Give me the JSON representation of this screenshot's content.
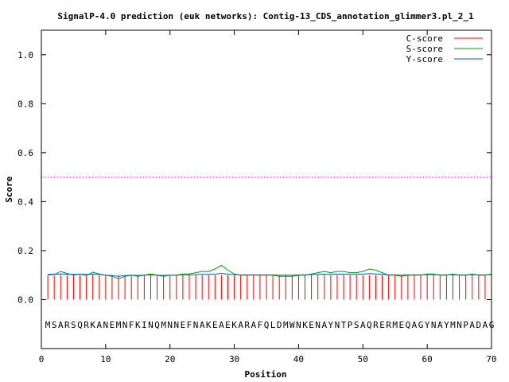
{
  "chart_data": {
    "type": "line",
    "title": "SignalP-4.0 prediction (euk networks): Contig-13_CDS_annotation_glimmer3.pl_2_1",
    "xlabel": "Position",
    "ylabel": "Score",
    "xlim": [
      0,
      70
    ],
    "ylim": [
      -0.2,
      1.1
    ],
    "xticks": [
      0,
      10,
      20,
      30,
      40,
      50,
      60,
      70
    ],
    "xtick_labels": [
      "0",
      "10",
      "20",
      "30",
      "40",
      "50",
      "60",
      "70"
    ],
    "yticks": [
      0.0,
      0.2,
      0.4,
      0.6,
      0.8,
      1.0
    ],
    "ytick_labels": [
      "0.0",
      "0.2",
      "0.4",
      "0.6",
      "0.8",
      "1.0"
    ],
    "grid": false,
    "legend_position": "top-right",
    "threshold": {
      "value": 0.5,
      "color": "#ff00ff",
      "style": "dotted"
    },
    "sequence": "MSARSQRKANEMNFKINQMNNEFNAKEAEKARAFQLDMWNKENAYNTPSAQRERMEQAGYNAYMNPADAG",
    "x": [
      1,
      2,
      3,
      4,
      5,
      6,
      7,
      8,
      9,
      10,
      11,
      12,
      13,
      14,
      15,
      16,
      17,
      18,
      19,
      20,
      21,
      22,
      23,
      24,
      25,
      26,
      27,
      28,
      29,
      30,
      31,
      32,
      33,
      34,
      35,
      36,
      37,
      38,
      39,
      40,
      41,
      42,
      43,
      44,
      45,
      46,
      47,
      48,
      49,
      50,
      51,
      52,
      53,
      54,
      55,
      56,
      57,
      58,
      59,
      60,
      61,
      62,
      63,
      64,
      65,
      66,
      67,
      68,
      69,
      70
    ],
    "series": [
      {
        "name": "C-score",
        "color": "#ff0000",
        "style": "impulses",
        "values": [
          0.1,
          0.1,
          0.1,
          0.1,
          0.1,
          0.1,
          0.1,
          0.1,
          0.1,
          0.1,
          0.1,
          0.1,
          0.1,
          0.1,
          0.1,
          0.1,
          0.1,
          0.1,
          0.1,
          0.1,
          0.1,
          0.1,
          0.1,
          0.1,
          0.1,
          0.1,
          0.1,
          0.1,
          0.1,
          0.1,
          0.1,
          0.1,
          0.1,
          0.1,
          0.1,
          0.1,
          0.1,
          0.1,
          0.1,
          0.1,
          0.1,
          0.1,
          0.1,
          0.1,
          0.1,
          0.1,
          0.1,
          0.1,
          0.1,
          0.1,
          0.1,
          0.1,
          0.1,
          0.1,
          0.1,
          0.1,
          0.1,
          0.1,
          0.1,
          0.1,
          0.1,
          0.1,
          0.1,
          0.1,
          0.1,
          0.1,
          0.1,
          0.1,
          0.1,
          0.1
        ]
      },
      {
        "name": "S-score",
        "color": "#00a000",
        "style": "line",
        "values": [
          0.1,
          0.103,
          0.115,
          0.107,
          0.1,
          0.105,
          0.098,
          0.112,
          0.105,
          0.1,
          0.095,
          0.085,
          0.095,
          0.1,
          0.095,
          0.1,
          0.105,
          0.1,
          0.095,
          0.1,
          0.1,
          0.105,
          0.105,
          0.11,
          0.115,
          0.115,
          0.125,
          0.14,
          0.12,
          0.105,
          0.1,
          0.1,
          0.1,
          0.1,
          0.1,
          0.1,
          0.095,
          0.095,
          0.095,
          0.1,
          0.1,
          0.105,
          0.11,
          0.115,
          0.11,
          0.115,
          0.115,
          0.11,
          0.11,
          0.115,
          0.125,
          0.12,
          0.11,
          0.1,
          0.1,
          0.095,
          0.1,
          0.1,
          0.1,
          0.105,
          0.105,
          0.1,
          0.1,
          0.105,
          0.1,
          0.1,
          0.105,
          0.1,
          0.1,
          0.105
        ]
      },
      {
        "name": "Y-score",
        "color": "#0060c0",
        "style": "line",
        "values": [
          0.103,
          0.104,
          0.105,
          0.104,
          0.103,
          0.104,
          0.103,
          0.104,
          0.103,
          0.1,
          0.098,
          0.095,
          0.098,
          0.1,
          0.099,
          0.1,
          0.101,
          0.1,
          0.099,
          0.1,
          0.1,
          0.101,
          0.101,
          0.102,
          0.103,
          0.103,
          0.104,
          0.107,
          0.104,
          0.102,
          0.101,
          0.101,
          0.101,
          0.101,
          0.101,
          0.101,
          0.1,
          0.1,
          0.1,
          0.101,
          0.101,
          0.102,
          0.103,
          0.104,
          0.103,
          0.104,
          0.104,
          0.103,
          0.103,
          0.104,
          0.106,
          0.105,
          0.103,
          0.101,
          0.101,
          0.1,
          0.101,
          0.101,
          0.101,
          0.102,
          0.102,
          0.101,
          0.101,
          0.102,
          0.101,
          0.101,
          0.102,
          0.101,
          0.101,
          0.102
        ]
      }
    ]
  }
}
